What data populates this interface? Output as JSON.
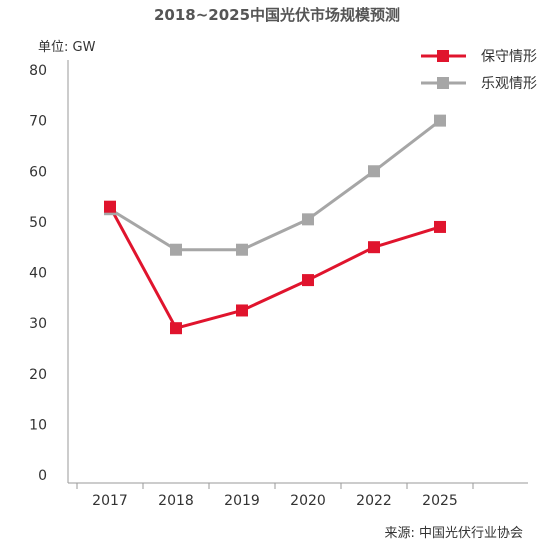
{
  "chart_data": {
    "type": "line",
    "title": "2018~2025中国光伏市场规模预测",
    "unit_label": "单位: GW",
    "source": "来源: 中国光伏行业协会",
    "categories": [
      "2017",
      "2018",
      "2019",
      "2020",
      "2022",
      "2025"
    ],
    "ylim": [
      0,
      80
    ],
    "yticks": [
      0,
      10,
      20,
      30,
      40,
      50,
      60,
      70,
      80
    ],
    "grid": false,
    "legend_position": "top-right",
    "series": [
      {
        "name": "保守情形",
        "color": "#e0142d",
        "values": [
          53,
          29,
          32.5,
          38.5,
          45,
          49
        ]
      },
      {
        "name": "乐观情形",
        "color": "#a6a6a6",
        "values": [
          52.5,
          44.5,
          44.5,
          50.5,
          60,
          70
        ]
      }
    ]
  }
}
